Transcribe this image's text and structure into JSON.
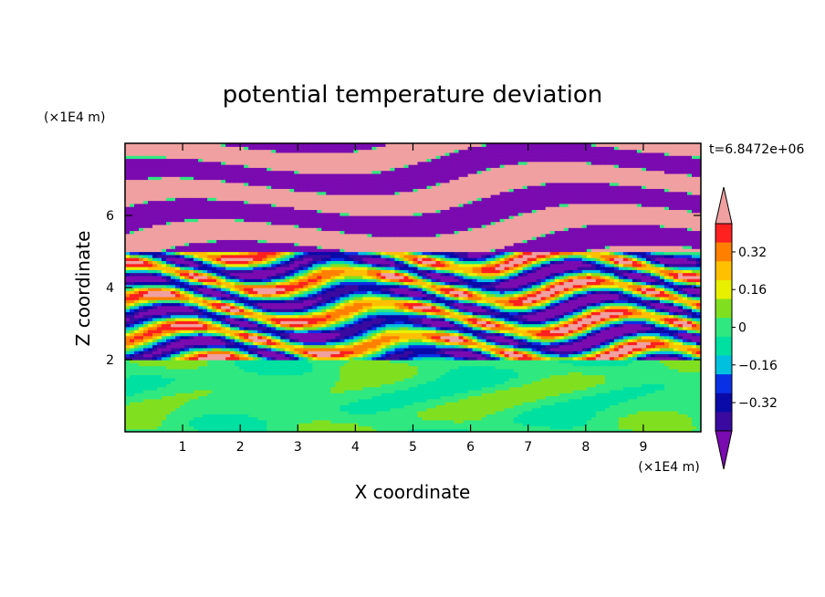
{
  "chart_data": {
    "type": "heatmap",
    "title": "potential temperature deviation",
    "xlabel": "X coordinate",
    "ylabel": "Z coordinate",
    "x_unit": "(×1E4 m)",
    "z_unit": "(×1E4 m)",
    "time_label": "t=6.8472e+06",
    "xlim": [
      0,
      10
    ],
    "ylim": [
      0,
      8
    ],
    "x_ticks": [
      "1",
      "2",
      "3",
      "4",
      "5",
      "6",
      "7",
      "8",
      "9"
    ],
    "y_ticks": [
      "2",
      "4",
      "6"
    ],
    "colorbar": {
      "levels": [
        -0.48,
        -0.4,
        -0.32,
        -0.24,
        -0.16,
        -0.08,
        0,
        0.08,
        0.16,
        0.24,
        0.32,
        0.4,
        0.48
      ],
      "tick_labels": [
        "0.32",
        "0.16",
        "0",
        "−0.16",
        "−0.32"
      ],
      "tick_values": [
        0.32,
        0.16,
        0,
        -0.16,
        -0.32
      ],
      "colors": [
        "#7a0bb0",
        "#3a0aa0",
        "#0a0aa8",
        "#0a30e6",
        "#00c0e0",
        "#00e0a0",
        "#30e880",
        "#80e020",
        "#e8f000",
        "#ffc000",
        "#ff8000",
        "#ff2020",
        "#f0a0a0"
      ],
      "extend": "both"
    },
    "layers": [
      {
        "z_from": 0.0,
        "z_to": 2.0,
        "pattern": "smooth green/lime (near zero)"
      },
      {
        "z_from": 2.0,
        "z_to": 5.0,
        "pattern": "mixed thin bands, all colors"
      },
      {
        "z_from": 5.0,
        "z_to": 8.0,
        "pattern": "alternating pink (+) and purple (−) bands"
      }
    ]
  },
  "colors": {
    "axis": "#000000",
    "background": "#ffffff"
  }
}
